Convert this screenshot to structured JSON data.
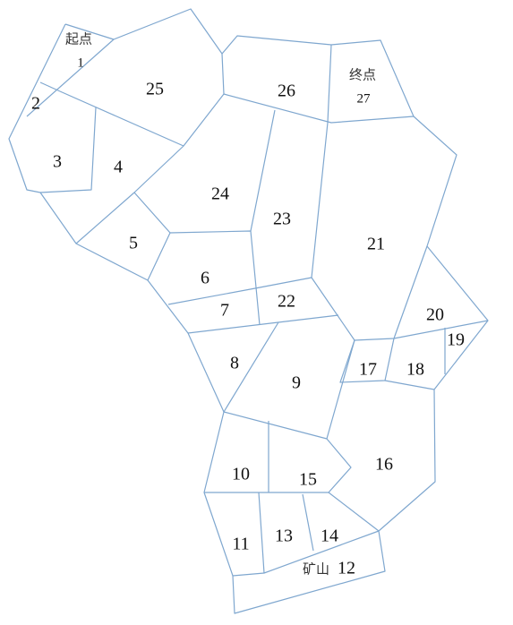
{
  "map": {
    "start_label": "起点",
    "end_label": "终点",
    "mine_label": "矿山",
    "regions": [
      "1",
      "2",
      "3",
      "4",
      "5",
      "6",
      "7",
      "8",
      "9",
      "10",
      "11",
      "12",
      "13",
      "14",
      "15",
      "16",
      "17",
      "18",
      "19",
      "20",
      "21",
      "22",
      "23",
      "24",
      "25",
      "26",
      "27"
    ]
  },
  "colors": {
    "edge": "#7fa7cf",
    "text": "#111111"
  }
}
